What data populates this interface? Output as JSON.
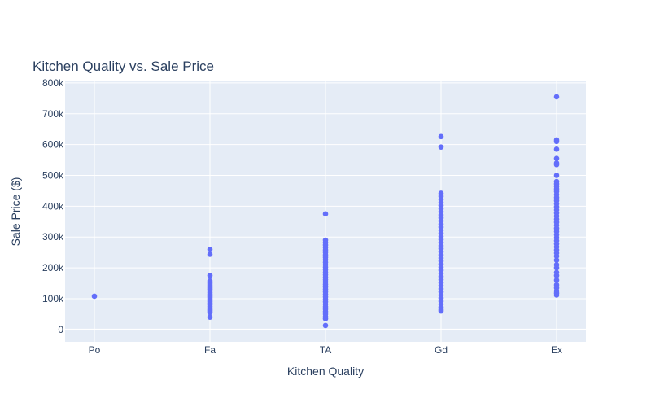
{
  "chart_data": {
    "type": "scatter",
    "title": "Kitchen Quality vs. Sale Price",
    "xlabel": "Kitchen Quality",
    "ylabel": "Sale Price ($)",
    "categories": [
      "Po",
      "Fa",
      "TA",
      "Gd",
      "Ex"
    ],
    "ylim": [
      -40000,
      805000
    ],
    "yticks": [
      0,
      100000,
      200000,
      300000,
      400000,
      500000,
      600000,
      700000,
      800000
    ],
    "ytick_labels": [
      "0",
      "100k",
      "200k",
      "300k",
      "400k",
      "500k",
      "600k",
      "700k",
      "800k"
    ],
    "grid": true,
    "marker_color": "#636efa",
    "plot_bg": "#e5ecf6",
    "series": [
      {
        "points": [
          {
            "x": "Po",
            "y": 108000
          },
          {
            "x": "Fa",
            "y": 260000
          },
          {
            "x": "Fa",
            "y": 244000
          },
          {
            "x": "Fa",
            "y": 175000
          },
          {
            "x": "Fa",
            "y": 158000
          },
          {
            "x": "Fa",
            "y": 150000
          },
          {
            "x": "Fa",
            "y": 145000
          },
          {
            "x": "Fa",
            "y": 140000
          },
          {
            "x": "Fa",
            "y": 135000
          },
          {
            "x": "Fa",
            "y": 130000
          },
          {
            "x": "Fa",
            "y": 125000
          },
          {
            "x": "Fa",
            "y": 120000
          },
          {
            "x": "Fa",
            "y": 115000
          },
          {
            "x": "Fa",
            "y": 110000
          },
          {
            "x": "Fa",
            "y": 105000
          },
          {
            "x": "Fa",
            "y": 100000
          },
          {
            "x": "Fa",
            "y": 95000
          },
          {
            "x": "Fa",
            "y": 90000
          },
          {
            "x": "Fa",
            "y": 85000
          },
          {
            "x": "Fa",
            "y": 80000
          },
          {
            "x": "Fa",
            "y": 75000
          },
          {
            "x": "Fa",
            "y": 70000
          },
          {
            "x": "Fa",
            "y": 65000
          },
          {
            "x": "Fa",
            "y": 60000
          },
          {
            "x": "Fa",
            "y": 55000
          },
          {
            "x": "Fa",
            "y": 40000
          },
          {
            "x": "TA",
            "y": 375000
          },
          {
            "x": "TA",
            "y": 290000
          },
          {
            "x": "TA",
            "y": 282000
          },
          {
            "x": "TA",
            "y": 274000
          },
          {
            "x": "TA",
            "y": 266000
          },
          {
            "x": "TA",
            "y": 258000
          },
          {
            "x": "TA",
            "y": 250000
          },
          {
            "x": "TA",
            "y": 242000
          },
          {
            "x": "TA",
            "y": 234000
          },
          {
            "x": "TA",
            "y": 226000
          },
          {
            "x": "TA",
            "y": 218000
          },
          {
            "x": "TA",
            "y": 210000
          },
          {
            "x": "TA",
            "y": 202000
          },
          {
            "x": "TA",
            "y": 194000
          },
          {
            "x": "TA",
            "y": 186000
          },
          {
            "x": "TA",
            "y": 178000
          },
          {
            "x": "TA",
            "y": 170000
          },
          {
            "x": "TA",
            "y": 162000
          },
          {
            "x": "TA",
            "y": 154000
          },
          {
            "x": "TA",
            "y": 146000
          },
          {
            "x": "TA",
            "y": 138000
          },
          {
            "x": "TA",
            "y": 130000
          },
          {
            "x": "TA",
            "y": 122000
          },
          {
            "x": "TA",
            "y": 114000
          },
          {
            "x": "TA",
            "y": 106000
          },
          {
            "x": "TA",
            "y": 98000
          },
          {
            "x": "TA",
            "y": 90000
          },
          {
            "x": "TA",
            "y": 82000
          },
          {
            "x": "TA",
            "y": 74000
          },
          {
            "x": "TA",
            "y": 66000
          },
          {
            "x": "TA",
            "y": 58000
          },
          {
            "x": "TA",
            "y": 50000
          },
          {
            "x": "TA",
            "y": 42000
          },
          {
            "x": "TA",
            "y": 35000
          },
          {
            "x": "TA",
            "y": 13000
          },
          {
            "x": "Gd",
            "y": 626000
          },
          {
            "x": "Gd",
            "y": 592000
          },
          {
            "x": "Gd",
            "y": 442000
          },
          {
            "x": "Gd",
            "y": 432000
          },
          {
            "x": "Gd",
            "y": 422000
          },
          {
            "x": "Gd",
            "y": 412000
          },
          {
            "x": "Gd",
            "y": 402000
          },
          {
            "x": "Gd",
            "y": 392000
          },
          {
            "x": "Gd",
            "y": 382000
          },
          {
            "x": "Gd",
            "y": 372000
          },
          {
            "x": "Gd",
            "y": 362000
          },
          {
            "x": "Gd",
            "y": 352000
          },
          {
            "x": "Gd",
            "y": 342000
          },
          {
            "x": "Gd",
            "y": 332000
          },
          {
            "x": "Gd",
            "y": 322000
          },
          {
            "x": "Gd",
            "y": 312000
          },
          {
            "x": "Gd",
            "y": 302000
          },
          {
            "x": "Gd",
            "y": 292000
          },
          {
            "x": "Gd",
            "y": 282000
          },
          {
            "x": "Gd",
            "y": 272000
          },
          {
            "x": "Gd",
            "y": 262000
          },
          {
            "x": "Gd",
            "y": 252000
          },
          {
            "x": "Gd",
            "y": 242000
          },
          {
            "x": "Gd",
            "y": 232000
          },
          {
            "x": "Gd",
            "y": 222000
          },
          {
            "x": "Gd",
            "y": 212000
          },
          {
            "x": "Gd",
            "y": 202000
          },
          {
            "x": "Gd",
            "y": 192000
          },
          {
            "x": "Gd",
            "y": 182000
          },
          {
            "x": "Gd",
            "y": 172000
          },
          {
            "x": "Gd",
            "y": 162000
          },
          {
            "x": "Gd",
            "y": 152000
          },
          {
            "x": "Gd",
            "y": 142000
          },
          {
            "x": "Gd",
            "y": 132000
          },
          {
            "x": "Gd",
            "y": 122000
          },
          {
            "x": "Gd",
            "y": 112000
          },
          {
            "x": "Gd",
            "y": 102000
          },
          {
            "x": "Gd",
            "y": 92000
          },
          {
            "x": "Gd",
            "y": 82000
          },
          {
            "x": "Gd",
            "y": 72000
          },
          {
            "x": "Gd",
            "y": 65000
          },
          {
            "x": "Gd",
            "y": 60000
          },
          {
            "x": "Ex",
            "y": 755000
          },
          {
            "x": "Ex",
            "y": 615000
          },
          {
            "x": "Ex",
            "y": 610000
          },
          {
            "x": "Ex",
            "y": 585000
          },
          {
            "x": "Ex",
            "y": 555000
          },
          {
            "x": "Ex",
            "y": 540000
          },
          {
            "x": "Ex",
            "y": 535000
          },
          {
            "x": "Ex",
            "y": 500000
          },
          {
            "x": "Ex",
            "y": 480000
          },
          {
            "x": "Ex",
            "y": 472000
          },
          {
            "x": "Ex",
            "y": 464000
          },
          {
            "x": "Ex",
            "y": 456000
          },
          {
            "x": "Ex",
            "y": 448000
          },
          {
            "x": "Ex",
            "y": 438000
          },
          {
            "x": "Ex",
            "y": 428000
          },
          {
            "x": "Ex",
            "y": 418000
          },
          {
            "x": "Ex",
            "y": 408000
          },
          {
            "x": "Ex",
            "y": 398000
          },
          {
            "x": "Ex",
            "y": 388000
          },
          {
            "x": "Ex",
            "y": 378000
          },
          {
            "x": "Ex",
            "y": 368000
          },
          {
            "x": "Ex",
            "y": 358000
          },
          {
            "x": "Ex",
            "y": 348000
          },
          {
            "x": "Ex",
            "y": 338000
          },
          {
            "x": "Ex",
            "y": 328000
          },
          {
            "x": "Ex",
            "y": 318000
          },
          {
            "x": "Ex",
            "y": 308000
          },
          {
            "x": "Ex",
            "y": 298000
          },
          {
            "x": "Ex",
            "y": 288000
          },
          {
            "x": "Ex",
            "y": 278000
          },
          {
            "x": "Ex",
            "y": 268000
          },
          {
            "x": "Ex",
            "y": 258000
          },
          {
            "x": "Ex",
            "y": 248000
          },
          {
            "x": "Ex",
            "y": 238000
          },
          {
            "x": "Ex",
            "y": 225000
          },
          {
            "x": "Ex",
            "y": 210000
          },
          {
            "x": "Ex",
            "y": 200000
          },
          {
            "x": "Ex",
            "y": 185000
          },
          {
            "x": "Ex",
            "y": 175000
          },
          {
            "x": "Ex",
            "y": 160000
          },
          {
            "x": "Ex",
            "y": 145000
          },
          {
            "x": "Ex",
            "y": 135000
          },
          {
            "x": "Ex",
            "y": 125000
          },
          {
            "x": "Ex",
            "y": 118000
          },
          {
            "x": "Ex",
            "y": 112000
          }
        ]
      }
    ]
  }
}
